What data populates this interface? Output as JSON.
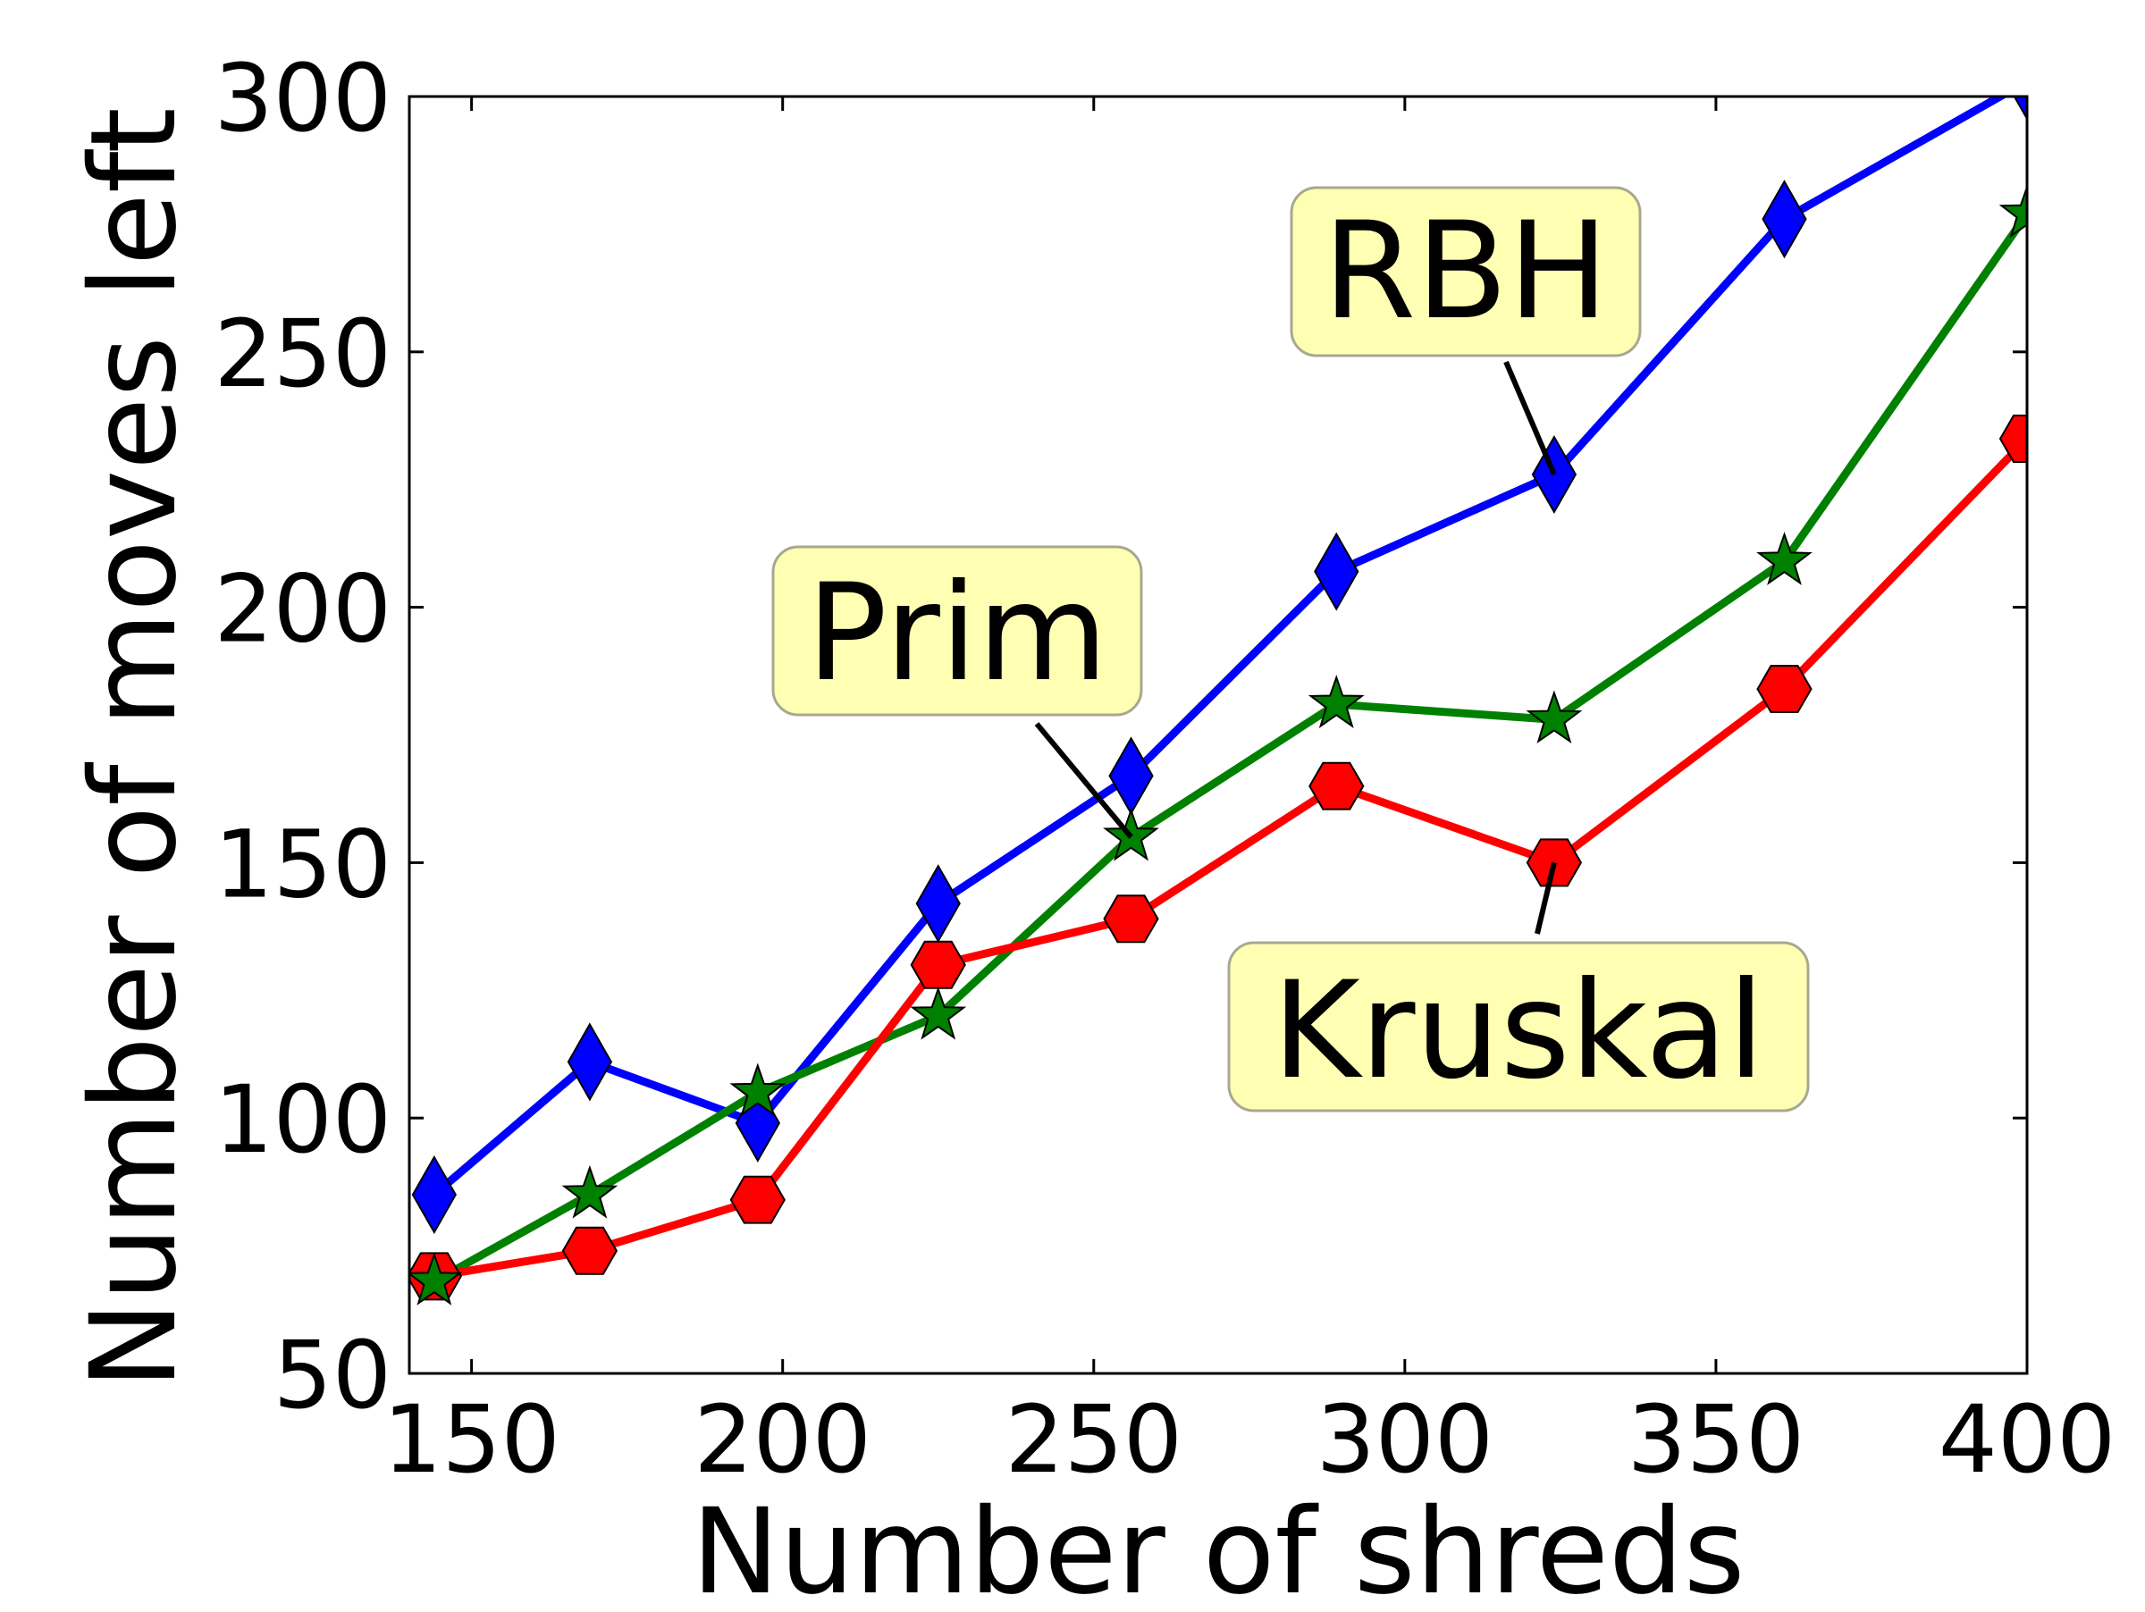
{
  "chart_data": {
    "type": "line",
    "title": "",
    "xlabel": "Number of shreds",
    "ylabel": "Number of moves left",
    "xlim": [
      140,
      400
    ],
    "ylim": [
      50,
      300
    ],
    "xticks": [
      150,
      200,
      250,
      300,
      350,
      400
    ],
    "yticks": [
      50,
      100,
      150,
      200,
      250,
      300
    ],
    "grid": false,
    "legend": "none",
    "x": [
      144,
      169,
      196,
      225,
      256,
      289,
      324,
      361,
      400
    ],
    "series": [
      {
        "name": "RBH",
        "color": "#0000ff",
        "marker": "diamond",
        "values": [
          85,
          111,
          99,
          142,
          167,
          207,
          226,
          276,
          303
        ]
      },
      {
        "name": "Prim",
        "color": "#008000",
        "marker": "star",
        "values": [
          68,
          85,
          105,
          120,
          155,
          181,
          178,
          209,
          277
        ]
      },
      {
        "name": "Kruskal",
        "color": "#ff0000",
        "marker": "hexagon",
        "values": [
          69,
          74,
          84,
          130,
          139,
          165,
          150,
          184,
          233
        ]
      }
    ],
    "annotations": [
      {
        "text": "RBH",
        "x": 324,
        "y": 226
      },
      {
        "text": "Prim",
        "x": 256,
        "y": 155
      },
      {
        "text": "Kruskal",
        "x": 324,
        "y": 150
      }
    ]
  }
}
